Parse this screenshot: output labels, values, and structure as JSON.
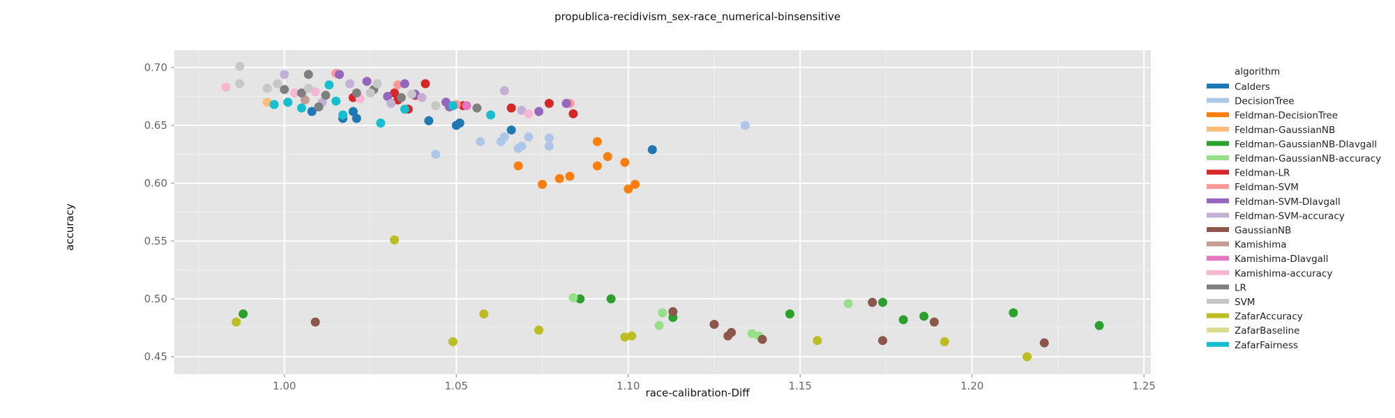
{
  "chart_data": {
    "type": "scatter",
    "title": "propublica-recidivism_sex-race_numerical-binsensitive",
    "xlabel": "race-calibration-Diff",
    "ylabel": "accuracy",
    "xlim": [
      0.968,
      1.252
    ],
    "ylim": [
      0.435,
      0.715
    ],
    "x_ticks": [
      1.0,
      1.05,
      1.1,
      1.15,
      1.2,
      1.25
    ],
    "x_tick_labels": [
      "1.00",
      "1.05",
      "1.10",
      "1.15",
      "1.20",
      "1.25"
    ],
    "y_ticks": [
      0.45,
      0.5,
      0.55,
      0.6,
      0.65,
      0.7
    ],
    "y_tick_labels": [
      "0.45",
      "0.50",
      "0.55",
      "0.60",
      "0.65",
      "0.70"
    ],
    "grid": true,
    "legend_title": "algorithm",
    "legend_position": "right",
    "series": [
      {
        "name": "Calders",
        "color": "#1f77b4",
        "points": [
          [
            1.008,
            0.662
          ],
          [
            1.017,
            0.656
          ],
          [
            1.02,
            0.662
          ],
          [
            1.021,
            0.656
          ],
          [
            1.042,
            0.654
          ],
          [
            1.05,
            0.65
          ],
          [
            1.051,
            0.652
          ],
          [
            1.066,
            0.646
          ],
          [
            1.107,
            0.629
          ]
        ]
      },
      {
        "name": "DecisionTree",
        "color": "#aec7e8",
        "points": [
          [
            1.044,
            0.625
          ],
          [
            1.057,
            0.636
          ],
          [
            1.063,
            0.636
          ],
          [
            1.064,
            0.64
          ],
          [
            1.068,
            0.63
          ],
          [
            1.069,
            0.632
          ],
          [
            1.071,
            0.64
          ],
          [
            1.077,
            0.632
          ],
          [
            1.077,
            0.639
          ],
          [
            1.134,
            0.65
          ]
        ]
      },
      {
        "name": "Feldman-DecisionTree",
        "color": "#ff7f0e",
        "points": [
          [
            1.068,
            0.615
          ],
          [
            1.075,
            0.599
          ],
          [
            1.08,
            0.604
          ],
          [
            1.083,
            0.606
          ],
          [
            1.091,
            0.615
          ],
          [
            1.091,
            0.636
          ],
          [
            1.094,
            0.623
          ],
          [
            1.099,
            0.618
          ],
          [
            1.1,
            0.595
          ],
          [
            1.102,
            0.599
          ]
        ]
      },
      {
        "name": "Feldman-GaussianNB",
        "color": "#ffbb78",
        "points": [
          [
            0.995,
            0.67
          ]
        ]
      },
      {
        "name": "Feldman-GaussianNB-DIavgall",
        "color": "#2ca02c",
        "points": [
          [
            0.988,
            0.487
          ],
          [
            1.086,
            0.5
          ],
          [
            1.095,
            0.5
          ],
          [
            1.113,
            0.484
          ],
          [
            1.147,
            0.487
          ],
          [
            1.174,
            0.497
          ],
          [
            1.18,
            0.482
          ],
          [
            1.186,
            0.485
          ],
          [
            1.212,
            0.488
          ],
          [
            1.237,
            0.477
          ]
        ]
      },
      {
        "name": "Feldman-GaussianNB-accuracy",
        "color": "#98df8a",
        "points": [
          [
            1.084,
            0.501
          ],
          [
            1.109,
            0.477
          ],
          [
            1.11,
            0.488
          ],
          [
            1.136,
            0.47
          ],
          [
            1.138,
            0.468
          ],
          [
            1.164,
            0.496
          ]
        ]
      },
      {
        "name": "Feldman-LR",
        "color": "#d62728",
        "points": [
          [
            1.02,
            0.674
          ],
          [
            1.032,
            0.678
          ],
          [
            1.033,
            0.672
          ],
          [
            1.036,
            0.664
          ],
          [
            1.038,
            0.676
          ],
          [
            1.041,
            0.686
          ],
          [
            1.052,
            0.667
          ],
          [
            1.066,
            0.665
          ],
          [
            1.077,
            0.669
          ],
          [
            1.084,
            0.66
          ]
        ]
      },
      {
        "name": "Feldman-SVM",
        "color": "#ff9896",
        "points": [
          [
            1.015,
            0.695
          ],
          [
            1.033,
            0.685
          ],
          [
            1.05,
            0.668
          ],
          [
            1.083,
            0.669
          ]
        ]
      },
      {
        "name": "Feldman-SVM-DIavgall",
        "color": "#9467bd",
        "points": [
          [
            1.016,
            0.694
          ],
          [
            1.024,
            0.688
          ],
          [
            1.03,
            0.675
          ],
          [
            1.035,
            0.686
          ],
          [
            1.038,
            0.677
          ],
          [
            1.047,
            0.67
          ],
          [
            1.048,
            0.666
          ],
          [
            1.074,
            0.662
          ],
          [
            1.082,
            0.669
          ]
        ]
      },
      {
        "name": "Feldman-SVM-accuracy",
        "color": "#c5b0d5",
        "points": [
          [
            1.0,
            0.694
          ],
          [
            1.011,
            0.67
          ],
          [
            1.019,
            0.686
          ],
          [
            1.031,
            0.669
          ],
          [
            1.04,
            0.674
          ],
          [
            1.064,
            0.68
          ],
          [
            1.069,
            0.663
          ]
        ]
      },
      {
        "name": "GaussianNB",
        "color": "#8c564b",
        "points": [
          [
            1.009,
            0.48
          ],
          [
            1.113,
            0.489
          ],
          [
            1.125,
            0.478
          ],
          [
            1.129,
            0.468
          ],
          [
            1.13,
            0.471
          ],
          [
            1.139,
            0.465
          ],
          [
            1.171,
            0.497
          ],
          [
            1.174,
            0.464
          ],
          [
            1.189,
            0.48
          ],
          [
            1.221,
            0.462
          ]
        ]
      },
      {
        "name": "Kamishima",
        "color": "#c49c94",
        "points": [
          [
            1.006,
            0.672
          ]
        ]
      },
      {
        "name": "Kamishima-DIavgall",
        "color": "#e377c2",
        "points": [
          [
            1.053,
            0.667
          ]
        ]
      },
      {
        "name": "Kamishima-accuracy",
        "color": "#f7b6d2",
        "points": [
          [
            0.983,
            0.683
          ],
          [
            1.003,
            0.678
          ],
          [
            1.009,
            0.679
          ],
          [
            1.022,
            0.673
          ],
          [
            1.071,
            0.66
          ]
        ]
      },
      {
        "name": "LR",
        "color": "#7f7f7f",
        "points": [
          [
            1.0,
            0.681
          ],
          [
            1.005,
            0.678
          ],
          [
            1.007,
            0.694
          ],
          [
            1.01,
            0.666
          ],
          [
            1.012,
            0.676
          ],
          [
            1.021,
            0.678
          ],
          [
            1.026,
            0.681
          ],
          [
            1.034,
            0.674
          ],
          [
            1.049,
            0.667
          ],
          [
            1.056,
            0.665
          ]
        ]
      },
      {
        "name": "SVM",
        "color": "#c7c7c7",
        "points": [
          [
            0.987,
            0.701
          ],
          [
            0.987,
            0.686
          ],
          [
            0.995,
            0.682
          ],
          [
            0.998,
            0.686
          ],
          [
            1.007,
            0.682
          ],
          [
            1.025,
            0.678
          ],
          [
            1.027,
            0.686
          ],
          [
            1.037,
            0.677
          ],
          [
            1.044,
            0.667
          ]
        ]
      },
      {
        "name": "ZafarAccuracy",
        "color": "#bcbd22",
        "points": [
          [
            0.986,
            0.48
          ],
          [
            1.032,
            0.551
          ],
          [
            1.049,
            0.463
          ],
          [
            1.058,
            0.487
          ],
          [
            1.074,
            0.473
          ],
          [
            1.099,
            0.467
          ],
          [
            1.101,
            0.468
          ],
          [
            1.155,
            0.464
          ],
          [
            1.192,
            0.463
          ],
          [
            1.216,
            0.45
          ]
        ]
      },
      {
        "name": "ZafarBaseline",
        "color": "#dbdb8d",
        "points": []
      },
      {
        "name": "ZafarFairness",
        "color": "#17becf",
        "points": [
          [
            0.997,
            0.668
          ],
          [
            1.001,
            0.67
          ],
          [
            1.005,
            0.665
          ],
          [
            1.013,
            0.685
          ],
          [
            1.015,
            0.671
          ],
          [
            1.017,
            0.659
          ],
          [
            1.028,
            0.652
          ],
          [
            1.035,
            0.664
          ],
          [
            1.049,
            0.667
          ],
          [
            1.06,
            0.659
          ]
        ]
      }
    ]
  }
}
